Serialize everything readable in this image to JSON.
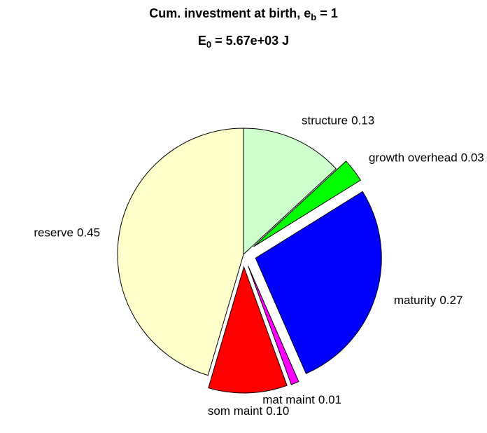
{
  "chart_data": {
    "type": "pie",
    "title_parts": [
      "Cum. investment at birth, e",
      "b",
      " = 1"
    ],
    "subtitle_parts": [
      "E",
      "0",
      " = 5.67e+03 J"
    ],
    "categories": [
      "structure",
      "growth overhead",
      "maturity",
      "mat maint",
      "som maint",
      "reserve"
    ],
    "values": [
      0.13,
      0.03,
      0.27,
      0.01,
      0.1,
      0.45
    ],
    "value_labels": [
      "0.13",
      "0.03",
      "0.27",
      "0.01",
      "0.10",
      "0.45"
    ],
    "colors": [
      "#ccffcc",
      "#00ff00",
      "#0000ff",
      "#ff00ff",
      "#ff0000",
      "#ffffcc"
    ],
    "explode": [
      0,
      1,
      1,
      1,
      1,
      0
    ]
  }
}
